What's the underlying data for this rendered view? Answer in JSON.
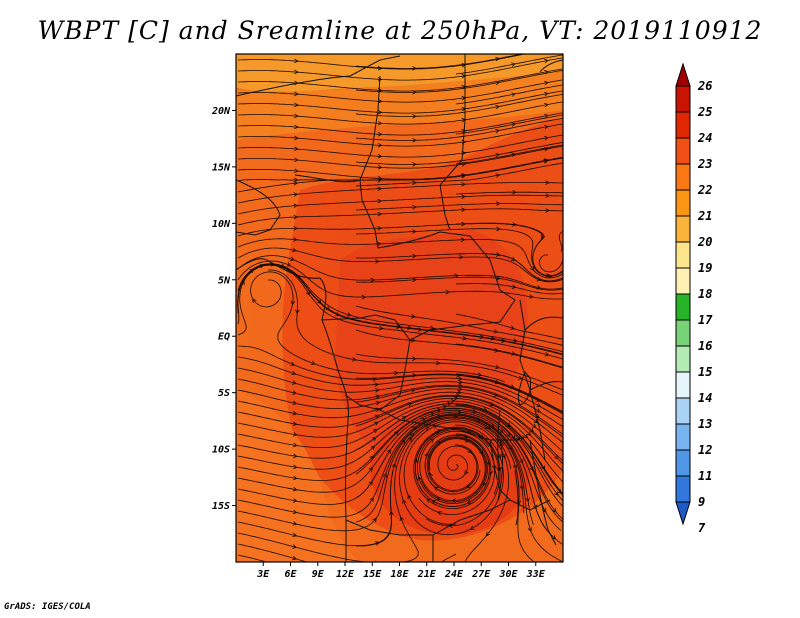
{
  "title": "WBPT [C] and Sreamline at 250hPa, VT: 2019110912",
  "credit": "GrADS: IGES/COLA",
  "map": {
    "lon_range": [
      0,
      36
    ],
    "lat_range": [
      -20,
      25
    ],
    "lat_ticks": [
      "20N",
      "15N",
      "10N",
      "5N",
      "EQ",
      "5S",
      "10S",
      "15S"
    ],
    "lat_values": [
      20,
      15,
      10,
      5,
      0,
      -5,
      -10,
      -15
    ],
    "lon_ticks": [
      "3E",
      "6E",
      "9E",
      "12E",
      "15E",
      "18E",
      "21E",
      "24E",
      "27E",
      "30E",
      "33E"
    ],
    "lon_values": [
      3,
      6,
      9,
      12,
      15,
      18,
      21,
      24,
      27,
      30,
      33
    ]
  },
  "colorbar": {
    "levels": [
      "26",
      "25",
      "24",
      "23",
      "22",
      "21",
      "20",
      "19",
      "18",
      "17",
      "16",
      "15",
      "14",
      "13",
      "12",
      "11",
      "9",
      "7"
    ],
    "colors": [
      "#a00000",
      "#c81400",
      "#e02800",
      "#f05014",
      "#fa7814",
      "#fa9614",
      "#fab43c",
      "#fce68c",
      "#fff0b4",
      "#28b428",
      "#78d278",
      "#b4ebb4",
      "#e6f5fa",
      "#aad2f5",
      "#78b4f0",
      "#5096e6",
      "#3278dc",
      "#1e5ac8"
    ]
  }
}
